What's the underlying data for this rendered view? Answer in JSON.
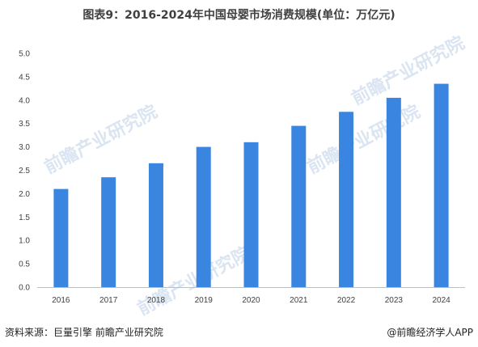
{
  "title": "图表9：2016-2024年中国母婴市场消费规模(单位：万亿元)",
  "source": "资料来源：巨量引擎 前瞻产业研究院",
  "credit": "@前瞻经济学人APP",
  "watermark": "前瞻产业研究院",
  "colors": {
    "bar": "#3a85e0",
    "axis": "#bfbfbf",
    "tick_text": "#404040"
  },
  "chart_data": {
    "type": "bar",
    "title": "图表9：2016-2024年中国母婴市场消费规模(单位：万亿元)",
    "categories": [
      "2016",
      "2017",
      "2018",
      "2019",
      "2020",
      "2021",
      "2022",
      "2023",
      "2024"
    ],
    "values": [
      2.1,
      2.35,
      2.65,
      3.0,
      3.1,
      3.45,
      3.75,
      4.05,
      4.35
    ],
    "ylim": [
      0,
      5
    ],
    "yticks": [
      "0.0",
      "0.5",
      "1.0",
      "1.5",
      "2.0",
      "2.5",
      "3.0",
      "3.5",
      "4.0",
      "4.5",
      "5.0"
    ],
    "xlabel": "",
    "ylabel": "",
    "grid": false,
    "legend": "none"
  }
}
